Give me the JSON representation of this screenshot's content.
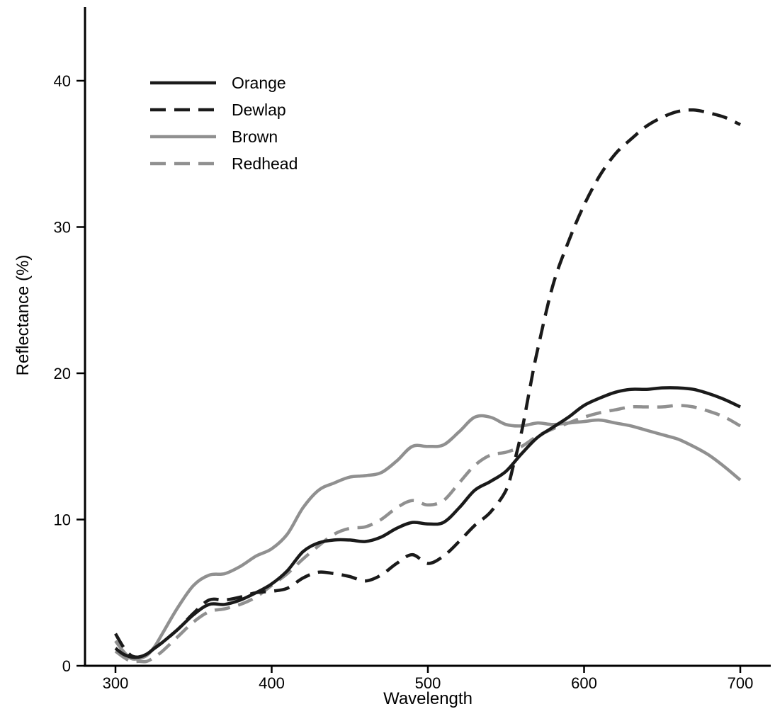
{
  "chart_data": {
    "type": "line",
    "title": "",
    "xlabel": "Wavelength",
    "ylabel": "Reflectance (%)",
    "xlim": [
      280,
      710
    ],
    "ylim": [
      0,
      45
    ],
    "x_ticks": [
      300,
      400,
      500,
      600,
      700
    ],
    "y_ticks": [
      0,
      10,
      20,
      30,
      40
    ],
    "grid": false,
    "legend_position": "top-left",
    "series": [
      {
        "name": "Orange",
        "color": "#1a1a1a",
        "dash": "solid",
        "x": [
          300,
          305,
          310,
          315,
          320,
          325,
          330,
          340,
          350,
          360,
          370,
          380,
          390,
          400,
          410,
          420,
          430,
          440,
          450,
          460,
          470,
          480,
          490,
          500,
          510,
          520,
          530,
          540,
          550,
          560,
          570,
          580,
          590,
          600,
          610,
          620,
          630,
          640,
          650,
          660,
          670,
          680,
          690,
          700
        ],
        "y": [
          1.2,
          0.8,
          0.6,
          0.6,
          0.8,
          1.2,
          1.6,
          2.5,
          3.5,
          4.2,
          4.2,
          4.5,
          5.0,
          5.6,
          6.5,
          7.8,
          8.4,
          8.6,
          8.6,
          8.5,
          8.8,
          9.4,
          9.8,
          9.7,
          9.8,
          10.8,
          12.0,
          12.6,
          13.3,
          14.5,
          15.6,
          16.3,
          17.0,
          17.8,
          18.3,
          18.7,
          18.9,
          18.9,
          19.0,
          19.0,
          18.9,
          18.6,
          18.2,
          17.7
        ]
      },
      {
        "name": "Dewlap",
        "color": "#1a1a1a",
        "dash": "dashed",
        "x": [
          300,
          305,
          310,
          315,
          320,
          325,
          330,
          340,
          350,
          360,
          370,
          380,
          390,
          400,
          410,
          420,
          430,
          440,
          450,
          460,
          470,
          480,
          490,
          500,
          510,
          520,
          530,
          540,
          550,
          555,
          560,
          565,
          570,
          580,
          590,
          600,
          610,
          620,
          630,
          640,
          650,
          660,
          670,
          680,
          690,
          700
        ],
        "y": [
          2.2,
          1.3,
          0.7,
          0.6,
          0.8,
          1.2,
          1.6,
          2.5,
          3.6,
          4.5,
          4.5,
          4.7,
          5.0,
          5.1,
          5.3,
          6.0,
          6.4,
          6.3,
          6.1,
          5.8,
          6.2,
          7.0,
          7.6,
          7.0,
          7.5,
          8.5,
          9.6,
          10.5,
          12.0,
          13.8,
          16.0,
          18.8,
          21.5,
          26.0,
          29.0,
          31.5,
          33.5,
          35.0,
          36.0,
          36.9,
          37.5,
          37.9,
          38.0,
          37.8,
          37.5,
          37.0
        ]
      },
      {
        "name": "Brown",
        "color": "#909090",
        "dash": "solid",
        "x": [
          300,
          305,
          310,
          315,
          320,
          325,
          330,
          340,
          350,
          360,
          370,
          380,
          390,
          400,
          410,
          420,
          430,
          440,
          450,
          460,
          470,
          480,
          490,
          500,
          510,
          520,
          530,
          540,
          550,
          560,
          570,
          580,
          590,
          600,
          610,
          620,
          630,
          640,
          650,
          660,
          670,
          680,
          690,
          700
        ],
        "y": [
          1.7,
          1.0,
          0.5,
          0.5,
          0.7,
          1.3,
          2.2,
          4.0,
          5.5,
          6.2,
          6.3,
          6.8,
          7.5,
          8.0,
          9.0,
          10.8,
          12.0,
          12.5,
          12.9,
          13.0,
          13.2,
          14.0,
          15.0,
          15.0,
          15.1,
          16.0,
          17.0,
          17.0,
          16.5,
          16.4,
          16.6,
          16.5,
          16.6,
          16.7,
          16.8,
          16.6,
          16.4,
          16.1,
          15.8,
          15.5,
          15.0,
          14.4,
          13.6,
          12.7
        ]
      },
      {
        "name": "Redhead",
        "color": "#909090",
        "dash": "dashed",
        "x": [
          300,
          305,
          310,
          315,
          320,
          325,
          330,
          340,
          350,
          360,
          370,
          380,
          390,
          400,
          410,
          420,
          430,
          440,
          450,
          460,
          470,
          480,
          490,
          500,
          510,
          520,
          530,
          540,
          550,
          560,
          570,
          580,
          590,
          600,
          610,
          620,
          630,
          640,
          650,
          660,
          670,
          680,
          690,
          700
        ],
        "y": [
          1.0,
          0.6,
          0.3,
          0.3,
          0.3,
          0.6,
          1.0,
          2.0,
          3.0,
          3.7,
          3.9,
          4.2,
          4.7,
          5.5,
          6.3,
          7.3,
          8.2,
          9.0,
          9.4,
          9.5,
          10.0,
          10.8,
          11.3,
          11.0,
          11.3,
          12.5,
          13.7,
          14.4,
          14.6,
          15.0,
          15.7,
          16.2,
          16.6,
          17.0,
          17.3,
          17.5,
          17.7,
          17.7,
          17.7,
          17.8,
          17.7,
          17.4,
          17.0,
          16.4
        ]
      }
    ]
  }
}
